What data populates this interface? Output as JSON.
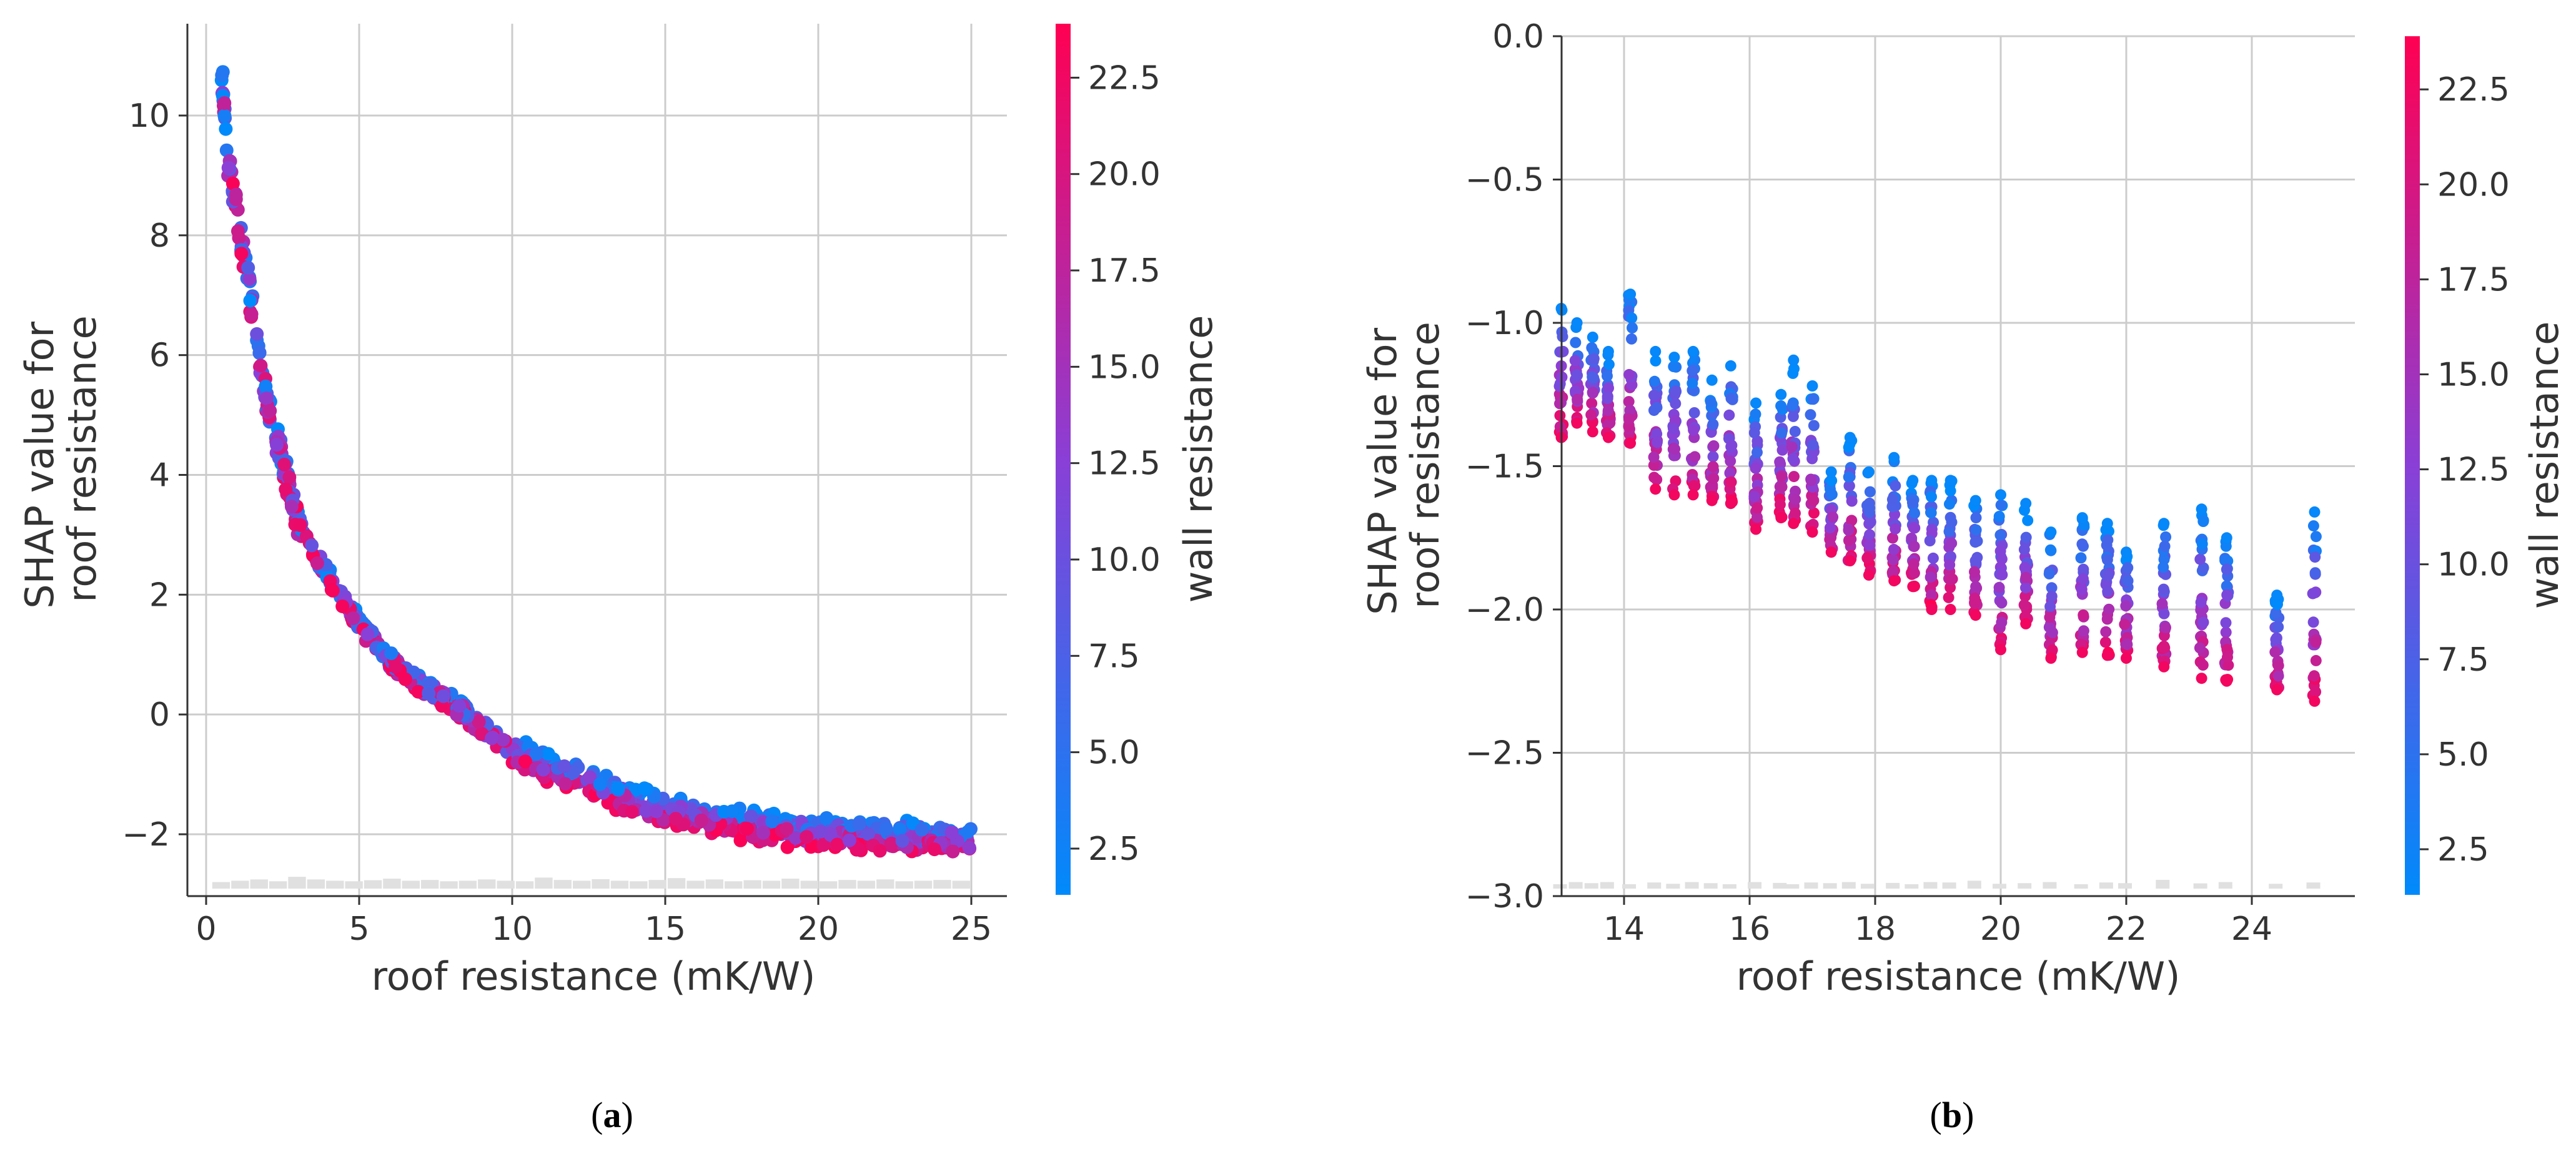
{
  "chart_data": [
    {
      "type": "scatter",
      "caption_letter": "a",
      "xlabel": "roof resistance (mK/W)",
      "ylabel": [
        "SHAP value for",
        "roof resistance"
      ],
      "xlim": [
        -0.5,
        26.3
      ],
      "ylim": [
        -3.0,
        11.4
      ],
      "xticks": [
        0,
        5,
        10,
        15,
        20,
        25
      ],
      "yticks": [
        -2,
        0,
        2,
        4,
        6,
        8,
        10
      ],
      "grid": true,
      "colorbar": {
        "label": "wall resistance",
        "range": [
          1.3,
          23.9
        ],
        "ticks": [
          "2.5",
          "5.0",
          "7.5",
          "10.0",
          "12.5",
          "15.0",
          "17.5",
          "20.0",
          "22.5"
        ],
        "tick_values": [
          2.5,
          5.0,
          7.5,
          10.0,
          12.5,
          15.0,
          17.5,
          20.0,
          22.5
        ]
      },
      "curve": [
        [
          0.5,
          10.8
        ],
        [
          0.7,
          9.3
        ],
        [
          1,
          8.4
        ],
        [
          1.5,
          6.8
        ],
        [
          2,
          5.2
        ],
        [
          2.5,
          4.2
        ],
        [
          3,
          3.2
        ],
        [
          3.5,
          2.7
        ],
        [
          4,
          2.3
        ],
        [
          4.5,
          1.9
        ],
        [
          5,
          1.5
        ],
        [
          5.5,
          1.2
        ],
        [
          6,
          0.9
        ],
        [
          7,
          0.5
        ],
        [
          8,
          0.2
        ],
        [
          9,
          -0.2
        ],
        [
          10,
          -0.6
        ],
        [
          11,
          -0.85
        ],
        [
          12,
          -1.05
        ],
        [
          13,
          -1.25
        ],
        [
          14,
          -1.45
        ],
        [
          15,
          -1.6
        ],
        [
          16,
          -1.7
        ],
        [
          17,
          -1.8
        ],
        [
          18,
          -1.87
        ],
        [
          19,
          -1.93
        ],
        [
          20,
          -1.97
        ],
        [
          22,
          -2.03
        ],
        [
          24,
          -2.08
        ],
        [
          25,
          -2.1
        ]
      ],
      "histogram_heights": [
        0.25,
        0.3,
        0.35,
        0.28,
        0.45,
        0.35,
        0.3,
        0.28,
        0.32,
        0.38,
        0.3,
        0.33,
        0.28,
        0.3,
        0.35,
        0.3,
        0.28,
        0.42,
        0.33,
        0.3,
        0.36,
        0.3,
        0.28,
        0.33,
        0.4,
        0.3,
        0.35,
        0.28,
        0.32,
        0.3,
        0.38,
        0.3,
        0.28,
        0.33,
        0.3,
        0.35,
        0.28,
        0.3,
        0.33,
        0.3
      ]
    },
    {
      "type": "scatter",
      "caption_letter": "b",
      "xlabel": "roof resistance (mK/W)",
      "ylabel": [
        "SHAP value for",
        "roof resistance"
      ],
      "xlim": [
        13.0,
        25.6
      ],
      "ylim": [
        -3.0,
        0.0
      ],
      "xticks": [
        14,
        16,
        18,
        20,
        22,
        24
      ],
      "yticks": [
        "0.0",
        "−0.5",
        "−1.0",
        "−1.5",
        "−2.0",
        "−2.5",
        "−3.0"
      ],
      "ytick_values": [
        0.0,
        -0.5,
        -1.0,
        -1.5,
        -2.0,
        -2.5,
        -3.0
      ],
      "grid": true,
      "colorbar": {
        "label": "wall resistance",
        "range": [
          1.3,
          23.9
        ],
        "ticks": [
          "2.5",
          "5.0",
          "7.5",
          "10.0",
          "12.5",
          "15.0",
          "17.5",
          "20.0",
          "22.5"
        ],
        "tick_values": [
          2.5,
          5.0,
          7.5,
          10.0,
          12.5,
          15.0,
          17.5,
          20.0,
          22.5
        ]
      },
      "columns": [
        {
          "x": 13.0,
          "top": -0.95,
          "bottom": -1.4
        },
        {
          "x": 13.25,
          "top": -1.0,
          "bottom": -1.35
        },
        {
          "x": 13.5,
          "top": -1.05,
          "bottom": -1.38
        },
        {
          "x": 13.75,
          "top": -1.1,
          "bottom": -1.4
        },
        {
          "x": 14.1,
          "top": -0.9,
          "bottom": -1.42
        },
        {
          "x": 14.5,
          "top": -1.1,
          "bottom": -1.58
        },
        {
          "x": 14.8,
          "top": -1.12,
          "bottom": -1.6
        },
        {
          "x": 15.1,
          "top": -1.1,
          "bottom": -1.6
        },
        {
          "x": 15.4,
          "top": -1.2,
          "bottom": -1.62
        },
        {
          "x": 15.7,
          "top": -1.15,
          "bottom": -1.63
        },
        {
          "x": 16.1,
          "top": -1.28,
          "bottom": -1.72
        },
        {
          "x": 16.5,
          "top": -1.25,
          "bottom": -1.68
        },
        {
          "x": 16.7,
          "top": -1.13,
          "bottom": -1.7
        },
        {
          "x": 17.0,
          "top": -1.22,
          "bottom": -1.73
        },
        {
          "x": 17.3,
          "top": -1.52,
          "bottom": -1.8
        },
        {
          "x": 17.6,
          "top": -1.4,
          "bottom": -1.83
        },
        {
          "x": 17.9,
          "top": -1.52,
          "bottom": -1.88
        },
        {
          "x": 18.3,
          "top": -1.47,
          "bottom": -1.9
        },
        {
          "x": 18.6,
          "top": -1.55,
          "bottom": -1.92
        },
        {
          "x": 18.9,
          "top": -1.55,
          "bottom": -2.0
        },
        {
          "x": 19.2,
          "top": -1.55,
          "bottom": -2.0
        },
        {
          "x": 19.6,
          "top": -1.62,
          "bottom": -2.02
        },
        {
          "x": 20.0,
          "top": -1.6,
          "bottom": -2.14
        },
        {
          "x": 20.4,
          "top": -1.63,
          "bottom": -2.05
        },
        {
          "x": 20.8,
          "top": -1.73,
          "bottom": -2.17
        },
        {
          "x": 21.3,
          "top": -1.68,
          "bottom": -2.15
        },
        {
          "x": 21.7,
          "top": -1.7,
          "bottom": -2.16
        },
        {
          "x": 22.0,
          "top": -1.8,
          "bottom": -2.17
        },
        {
          "x": 22.6,
          "top": -1.7,
          "bottom": -2.2
        },
        {
          "x": 23.2,
          "top": -1.65,
          "bottom": -2.24
        },
        {
          "x": 23.6,
          "top": -1.75,
          "bottom": -2.25
        },
        {
          "x": 24.4,
          "top": -1.95,
          "bottom": -2.28
        },
        {
          "x": 25.0,
          "top": -1.66,
          "bottom": -2.32
        }
      ],
      "histogram_heights": [
        0.2,
        0.3,
        0.25,
        0.3,
        0.2,
        0.28,
        0.22,
        0.3,
        0.25,
        0.2,
        0.3,
        0.26,
        0.2,
        0.28,
        0.25,
        0.3,
        0.22,
        0.26,
        0.2,
        0.3,
        0.28,
        0.36,
        0.22,
        0.25,
        0.3,
        0.2,
        0.28,
        0.25,
        0.4,
        0.24,
        0.3,
        0.22,
        0.28
      ]
    }
  ]
}
